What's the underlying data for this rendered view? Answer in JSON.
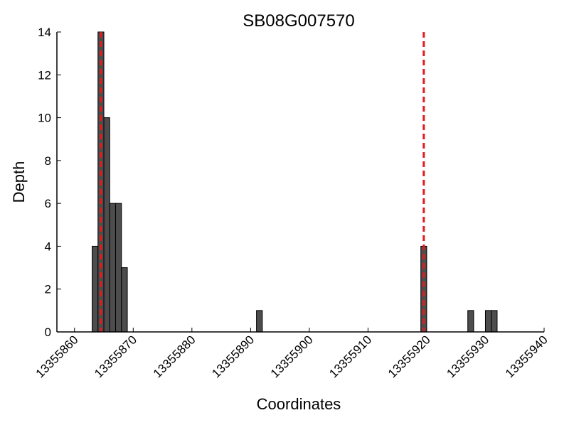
{
  "chart_data": {
    "type": "bar",
    "title": "SB08G007570",
    "xlabel": "Coordinates",
    "ylabel": "Depth",
    "xlim": [
      13355857,
      13355940
    ],
    "ylim": [
      0,
      14
    ],
    "x_ticks": [
      13355860,
      13355870,
      13355880,
      13355890,
      13355900,
      13355910,
      13355920,
      13355930,
      13355940
    ],
    "y_ticks": [
      0,
      2,
      4,
      6,
      8,
      10,
      12,
      14
    ],
    "bin_width": 1,
    "bars": [
      {
        "x": 13355863,
        "value": 4
      },
      {
        "x": 13355864,
        "value": 14
      },
      {
        "x": 13355865,
        "value": 10
      },
      {
        "x": 13355866,
        "value": 6
      },
      {
        "x": 13355867,
        "value": 6
      },
      {
        "x": 13355868,
        "value": 3
      },
      {
        "x": 13355891,
        "value": 1
      },
      {
        "x": 13355919,
        "value": 4
      },
      {
        "x": 13355927,
        "value": 1
      },
      {
        "x": 13355930,
        "value": 1
      },
      {
        "x": 13355931,
        "value": 1
      }
    ],
    "reference_lines": [
      13355864.5,
      13355919.5
    ],
    "bar_color": "#4d4d4d",
    "bar_edge_color": "#000000",
    "reference_line_color": "#e31a1c",
    "grid": false
  }
}
